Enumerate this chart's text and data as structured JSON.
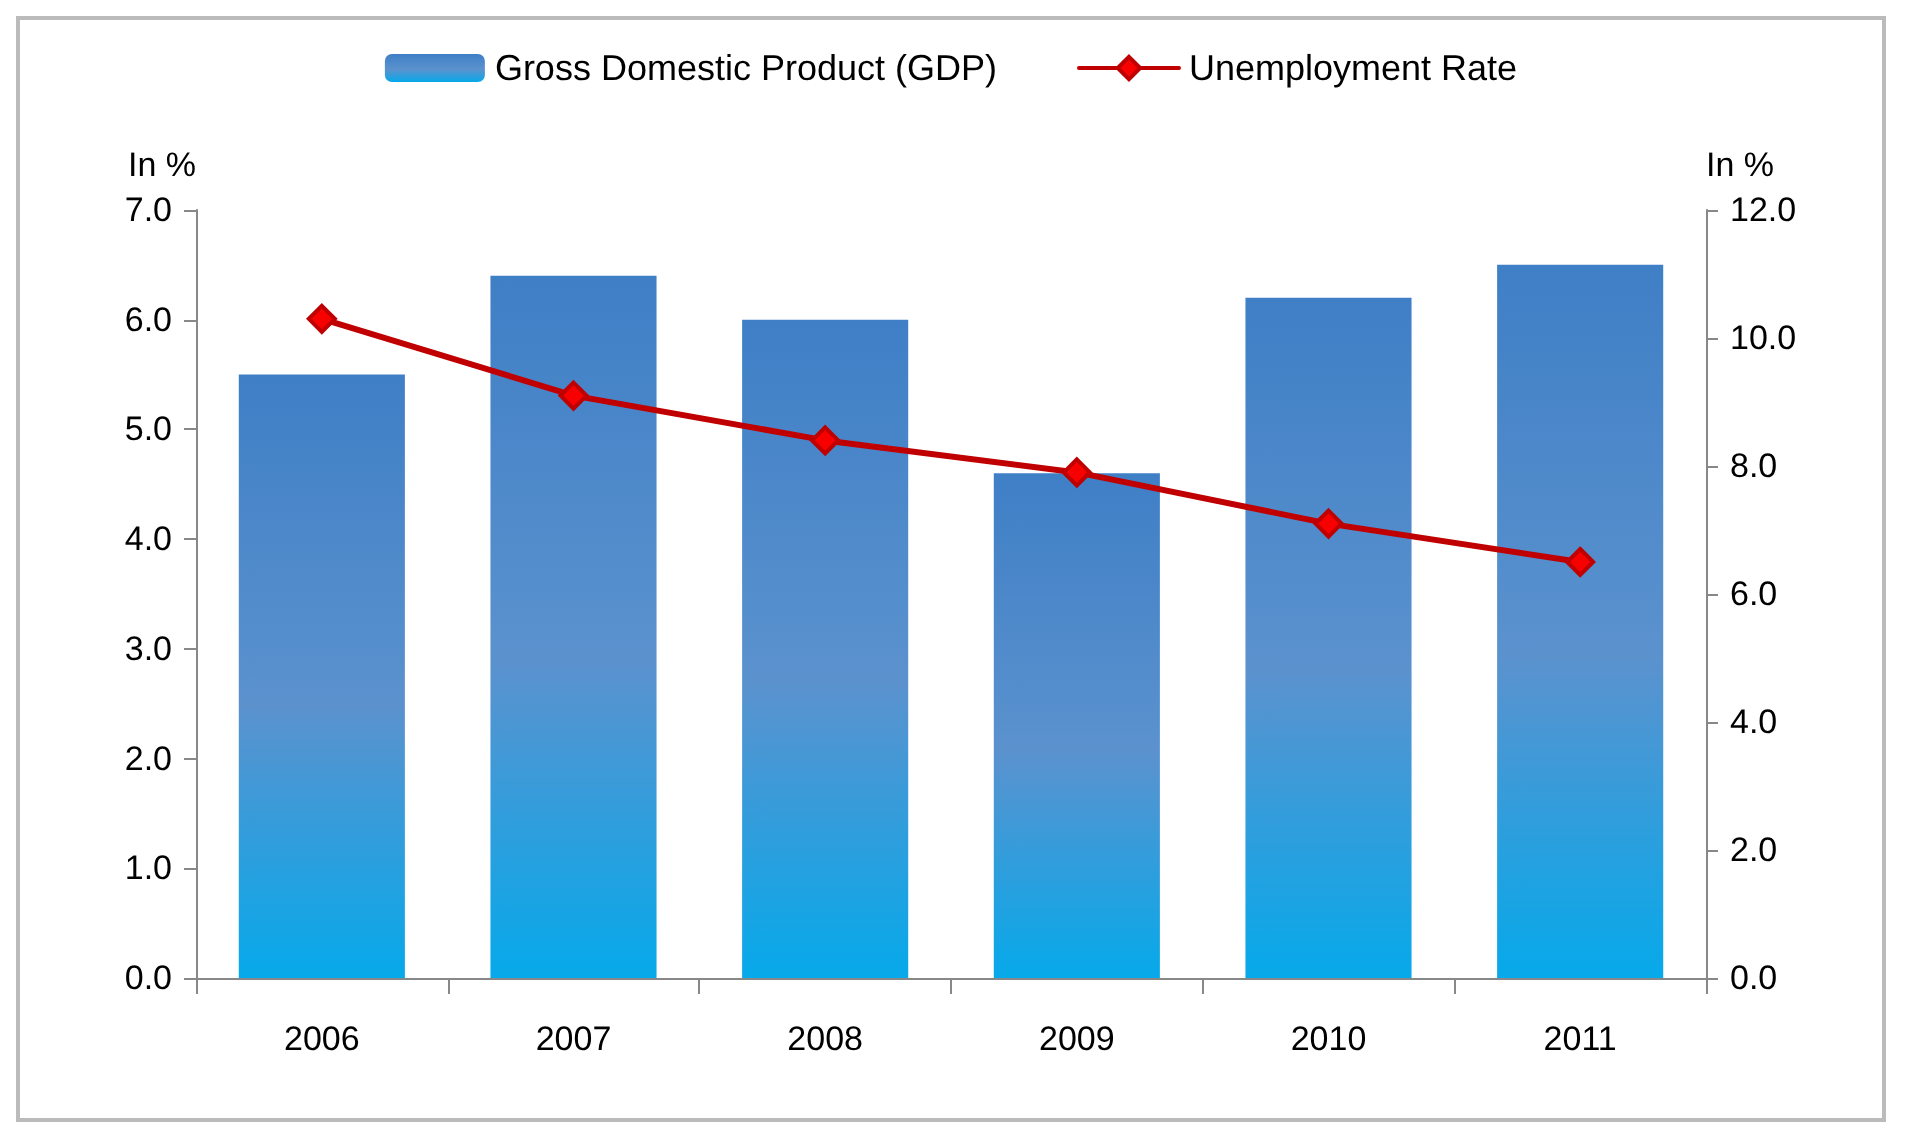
{
  "chart_data": {
    "type": "bar",
    "categories": [
      "2006",
      "2007",
      "2008",
      "2009",
      "2010",
      "2011"
    ],
    "series": [
      {
        "name": "Gross Domestic Product (GDP)",
        "color": "#3f7fc6",
        "values": [
          5.5,
          6.4,
          6.0,
          4.6,
          6.2,
          6.5
        ]
      },
      {
        "name": "Unemployment Rate",
        "type": "line",
        "axis": "y2",
        "color": "#c00000",
        "values": [
          10.3,
          9.1,
          8.4,
          7.9,
          7.1,
          6.5
        ]
      }
    ],
    "ylabel": "In %",
    "y2label": "In %",
    "ylim": [
      0,
      7
    ],
    "yticks": [
      {
        "value": 0,
        "label": "0.0"
      },
      {
        "value": 1,
        "label": "1.0"
      },
      {
        "value": 2,
        "label": "2.0"
      },
      {
        "value": 3,
        "label": "3.0"
      },
      {
        "value": 4,
        "label": "4.0"
      },
      {
        "value": 5,
        "label": "5.0"
      },
      {
        "value": 6,
        "label": "6.0"
      },
      {
        "value": 7,
        "label": "7.0"
      }
    ],
    "y2lim": [
      0,
      12
    ],
    "y2ticks": [
      {
        "value": 0,
        "label": "0.0"
      },
      {
        "value": 2,
        "label": "2.0"
      },
      {
        "value": 4,
        "label": "4.0"
      },
      {
        "value": 6,
        "label": "6.0"
      },
      {
        "value": 8,
        "label": "8.0"
      },
      {
        "value": 10,
        "label": "10.0"
      },
      {
        "value": 12,
        "label": "12.0"
      }
    ],
    "legend": "top",
    "grid": false,
    "marker": "diamond",
    "line_style": "solid"
  }
}
